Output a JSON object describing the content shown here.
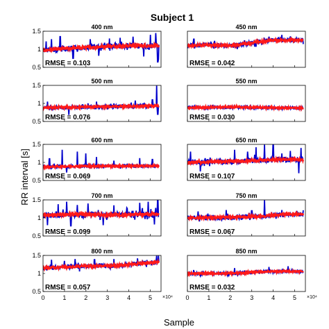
{
  "chart_data": {
    "type": "line",
    "title": "Subject 1",
    "xlabel": "Sample",
    "ylabel": "RR interval [s]",
    "x_exponent": "×10⁴",
    "xlim": [
      0,
      55000
    ],
    "x_ticks": [
      "0",
      "1",
      "2",
      "3",
      "4",
      "5"
    ],
    "x_ticks_values": [
      0,
      10000,
      20000,
      30000,
      40000,
      50000
    ],
    "series_colors": {
      "measured": "#0000cc",
      "reference": "#ff1a1a"
    },
    "panels": [
      {
        "title": "400 nm",
        "rmse_label": "RMSE = 0.103",
        "ylim": [
          0.5,
          1.5
        ],
        "y_ticks": [
          "0.5",
          "1",
          "1.5"
        ],
        "y_ticks_values": [
          0.5,
          1,
          1.5
        ],
        "x_end": 54000,
        "baseline": [
          [
            0,
            0.97
          ],
          [
            10000,
            1.02
          ],
          [
            20000,
            1.05
          ],
          [
            30000,
            1.08
          ],
          [
            40000,
            1.1
          ],
          [
            54000,
            1.1
          ]
        ],
        "noise": 0.08,
        "spikes": [
          [
            1500,
            1.22
          ],
          [
            4000,
            1.28
          ],
          [
            8000,
            1.35
          ],
          [
            14000,
            0.75
          ],
          [
            22000,
            1.28
          ],
          [
            26000,
            0.82
          ],
          [
            31000,
            1.3
          ],
          [
            36000,
            1.32
          ],
          [
            42000,
            1.35
          ],
          [
            47000,
            0.8
          ],
          [
            50000,
            1.4
          ],
          [
            52500,
            1.45
          ],
          [
            53500,
            0.65
          ],
          [
            53800,
            0.72
          ]
        ],
        "has_x_ticks": false
      },
      {
        "title": "450 nm",
        "rmse_label": "RMSE = 0.042",
        "ylim": [
          0.5,
          1.5
        ],
        "y_ticks": [],
        "y_ticks_values": [],
        "x_end": 54000,
        "baseline": [
          [
            0,
            1.1
          ],
          [
            10000,
            1.12
          ],
          [
            20000,
            1.1
          ],
          [
            30000,
            1.18
          ],
          [
            40000,
            1.25
          ],
          [
            54000,
            1.25
          ]
        ],
        "noise": 0.06,
        "spikes": [
          [
            3000,
            1.28
          ],
          [
            38000,
            1.35
          ],
          [
            44000,
            1.4
          ],
          [
            48000,
            1.36
          ]
        ],
        "has_x_ticks": false
      },
      {
        "title": "500 nm",
        "rmse_label": "RMSE = 0.076",
        "ylim": [
          0.5,
          1.5
        ],
        "y_ticks": [
          "0.5",
          "1",
          "1.5"
        ],
        "y_ticks_values": [
          0.5,
          1,
          1.5
        ],
        "x_end": 54000,
        "baseline": [
          [
            0,
            0.88
          ],
          [
            20000,
            0.9
          ],
          [
            40000,
            0.92
          ],
          [
            54000,
            0.93
          ]
        ],
        "noise": 0.05,
        "spikes": [
          [
            2000,
            1.05
          ],
          [
            12000,
            0.68
          ],
          [
            25000,
            1.05
          ],
          [
            43000,
            1.08
          ],
          [
            51000,
            1.1
          ],
          [
            53000,
            1.52
          ],
          [
            53500,
            0.7
          ]
        ],
        "has_x_ticks": false
      },
      {
        "title": "550 nm",
        "rmse_label": "RMSE = 0.030",
        "ylim": [
          0.5,
          1.5
        ],
        "y_ticks": [],
        "y_ticks_values": [],
        "x_end": 54000,
        "baseline": [
          [
            0,
            0.88
          ],
          [
            20000,
            0.9
          ],
          [
            40000,
            0.88
          ],
          [
            54000,
            0.87
          ]
        ],
        "noise": 0.04,
        "spikes": [],
        "has_x_ticks": false
      },
      {
        "title": "600 nm",
        "rmse_label": "RMSE = 0.069",
        "ylim": [
          0.5,
          1.5
        ],
        "y_ticks": [
          "0.5",
          "1",
          "1.5"
        ],
        "y_ticks_values": [
          0.5,
          1,
          1.5
        ],
        "x_end": 54000,
        "baseline": [
          [
            0,
            0.88
          ],
          [
            20000,
            0.9
          ],
          [
            40000,
            0.9
          ],
          [
            54000,
            0.9
          ]
        ],
        "noise": 0.04,
        "spikes": [
          [
            3000,
            1.1
          ],
          [
            9000,
            1.35
          ],
          [
            11000,
            0.72
          ],
          [
            16000,
            1.3
          ],
          [
            20000,
            1.25
          ],
          [
            25000,
            1.15
          ],
          [
            33000,
            1.05
          ],
          [
            45000,
            1.12
          ],
          [
            51000,
            1.08
          ]
        ],
        "has_x_ticks": false
      },
      {
        "title": "650 nm",
        "rmse_label": "RMSE = 0.107",
        "ylim": [
          0.5,
          1.5
        ],
        "y_ticks": [],
        "y_ticks_values": [],
        "x_end": 54000,
        "baseline": [
          [
            0,
            1.0
          ],
          [
            15000,
            1.02
          ],
          [
            30000,
            1.05
          ],
          [
            45000,
            1.08
          ],
          [
            54000,
            1.08
          ]
        ],
        "noise": 0.07,
        "spikes": [
          [
            1500,
            1.3
          ],
          [
            6000,
            0.75
          ],
          [
            22000,
            1.35
          ],
          [
            28000,
            1.3
          ],
          [
            32000,
            1.42
          ],
          [
            36000,
            1.5
          ],
          [
            40000,
            1.5
          ],
          [
            44000,
            1.25
          ],
          [
            48000,
            1.32
          ],
          [
            52000,
            0.7
          ],
          [
            53000,
            1.4
          ]
        ],
        "has_x_ticks": false
      },
      {
        "title": "700 nm",
        "rmse_label": "RMSE = 0.099",
        "ylim": [
          0.5,
          1.5
        ],
        "y_ticks": [
          "0.5",
          "1",
          "1.5"
        ],
        "y_ticks_values": [
          0.5,
          1,
          1.5
        ],
        "x_end": 54000,
        "baseline": [
          [
            0,
            1.08
          ],
          [
            15000,
            1.1
          ],
          [
            30000,
            1.08
          ],
          [
            45000,
            1.1
          ],
          [
            54000,
            1.1
          ]
        ],
        "noise": 0.08,
        "spikes": [
          [
            2000,
            0.8
          ],
          [
            7000,
            1.38
          ],
          [
            11000,
            1.45
          ],
          [
            13000,
            0.78
          ],
          [
            16000,
            1.36
          ],
          [
            21000,
            1.4
          ],
          [
            28000,
            0.8
          ],
          [
            33000,
            1.35
          ],
          [
            39000,
            1.28
          ],
          [
            45000,
            1.42
          ],
          [
            49000,
            1.45
          ],
          [
            52000,
            0.82
          ],
          [
            53500,
            1.5
          ]
        ],
        "has_x_ticks": false
      },
      {
        "title": "750 nm",
        "rmse_label": "RMSE = 0.067",
        "ylim": [
          0.5,
          1.5
        ],
        "y_ticks": [],
        "y_ticks_values": [],
        "x_end": 54000,
        "baseline": [
          [
            0,
            1.0
          ],
          [
            20000,
            1.02
          ],
          [
            35000,
            1.05
          ],
          [
            45000,
            1.1
          ],
          [
            54000,
            1.1
          ]
        ],
        "noise": 0.06,
        "spikes": [
          [
            5000,
            1.18
          ],
          [
            18000,
            1.22
          ],
          [
            30000,
            1.2
          ],
          [
            36000,
            1.52
          ],
          [
            44000,
            1.22
          ],
          [
            51000,
            1.18
          ]
        ],
        "has_x_ticks": false
      },
      {
        "title": "800 nm",
        "rmse_label": "RMSE = 0.057",
        "ylim": [
          0.5,
          1.5
        ],
        "y_ticks": [
          "0.5",
          "1",
          "1.5"
        ],
        "y_ticks_values": [
          0.5,
          1,
          1.5
        ],
        "x_end": 54000,
        "baseline": [
          [
            0,
            1.15
          ],
          [
            20000,
            1.2
          ],
          [
            35000,
            1.22
          ],
          [
            50000,
            1.3
          ],
          [
            54000,
            1.32
          ]
        ],
        "noise": 0.06,
        "spikes": [
          [
            4000,
            1.38
          ],
          [
            10000,
            1.35
          ],
          [
            15000,
            1.4
          ],
          [
            24000,
            1.38
          ],
          [
            33000,
            1.4
          ],
          [
            44000,
            1.42
          ],
          [
            53000,
            1.55
          ],
          [
            53800,
            1.62
          ]
        ],
        "has_x_ticks": true
      },
      {
        "title": "850 nm",
        "rmse_label": "RMSE = 0.032",
        "ylim": [
          0.5,
          1.5
        ],
        "y_ticks": [],
        "y_ticks_values": [],
        "x_end": 54000,
        "baseline": [
          [
            0,
            1.0
          ],
          [
            20000,
            1.0
          ],
          [
            35000,
            1.05
          ],
          [
            45000,
            1.06
          ],
          [
            54000,
            1.06
          ]
        ],
        "noise": 0.04,
        "spikes": [
          [
            22000,
            1.15
          ],
          [
            38000,
            1.18
          ],
          [
            47000,
            1.2
          ]
        ],
        "has_x_ticks": true
      }
    ]
  }
}
